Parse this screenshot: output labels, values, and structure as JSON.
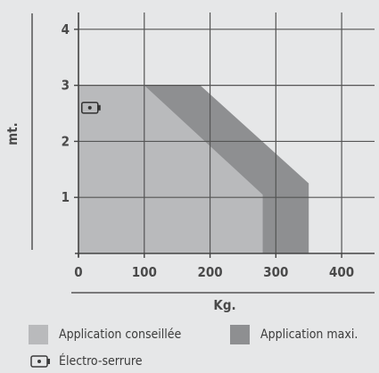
{
  "chart_data": {
    "type": "area",
    "xlabel": "Kg.",
    "ylabel": "mt.",
    "xlim": [
      0,
      450
    ],
    "ylim": [
      0,
      4.3
    ],
    "x_ticks": [
      "0",
      "100",
      "200",
      "300",
      "400"
    ],
    "y_ticks": [
      "1",
      "2",
      "3",
      "4"
    ],
    "grid": true,
    "series": [
      {
        "name": "Application maxi.",
        "color": "#8e8f91",
        "points": [
          [
            0,
            0
          ],
          [
            0,
            3
          ],
          [
            185,
            3
          ],
          [
            350,
            1.25
          ],
          [
            350,
            0
          ]
        ]
      },
      {
        "name": "Application conseillée",
        "color": "#b9babc",
        "points": [
          [
            0,
            0
          ],
          [
            0,
            3
          ],
          [
            100,
            3
          ],
          [
            280,
            1.05
          ],
          [
            280,
            0
          ]
        ]
      }
    ],
    "annotation": {
      "icon": "electro-lock-icon",
      "x": 20,
      "y": 2.6
    }
  },
  "legend": {
    "conseillee_label": "Application conseillée",
    "maxi_label": "Application maxi.",
    "lock_label": "Électro-serrure",
    "conseillee_color": "#b9babc",
    "maxi_color": "#8e8f91"
  }
}
